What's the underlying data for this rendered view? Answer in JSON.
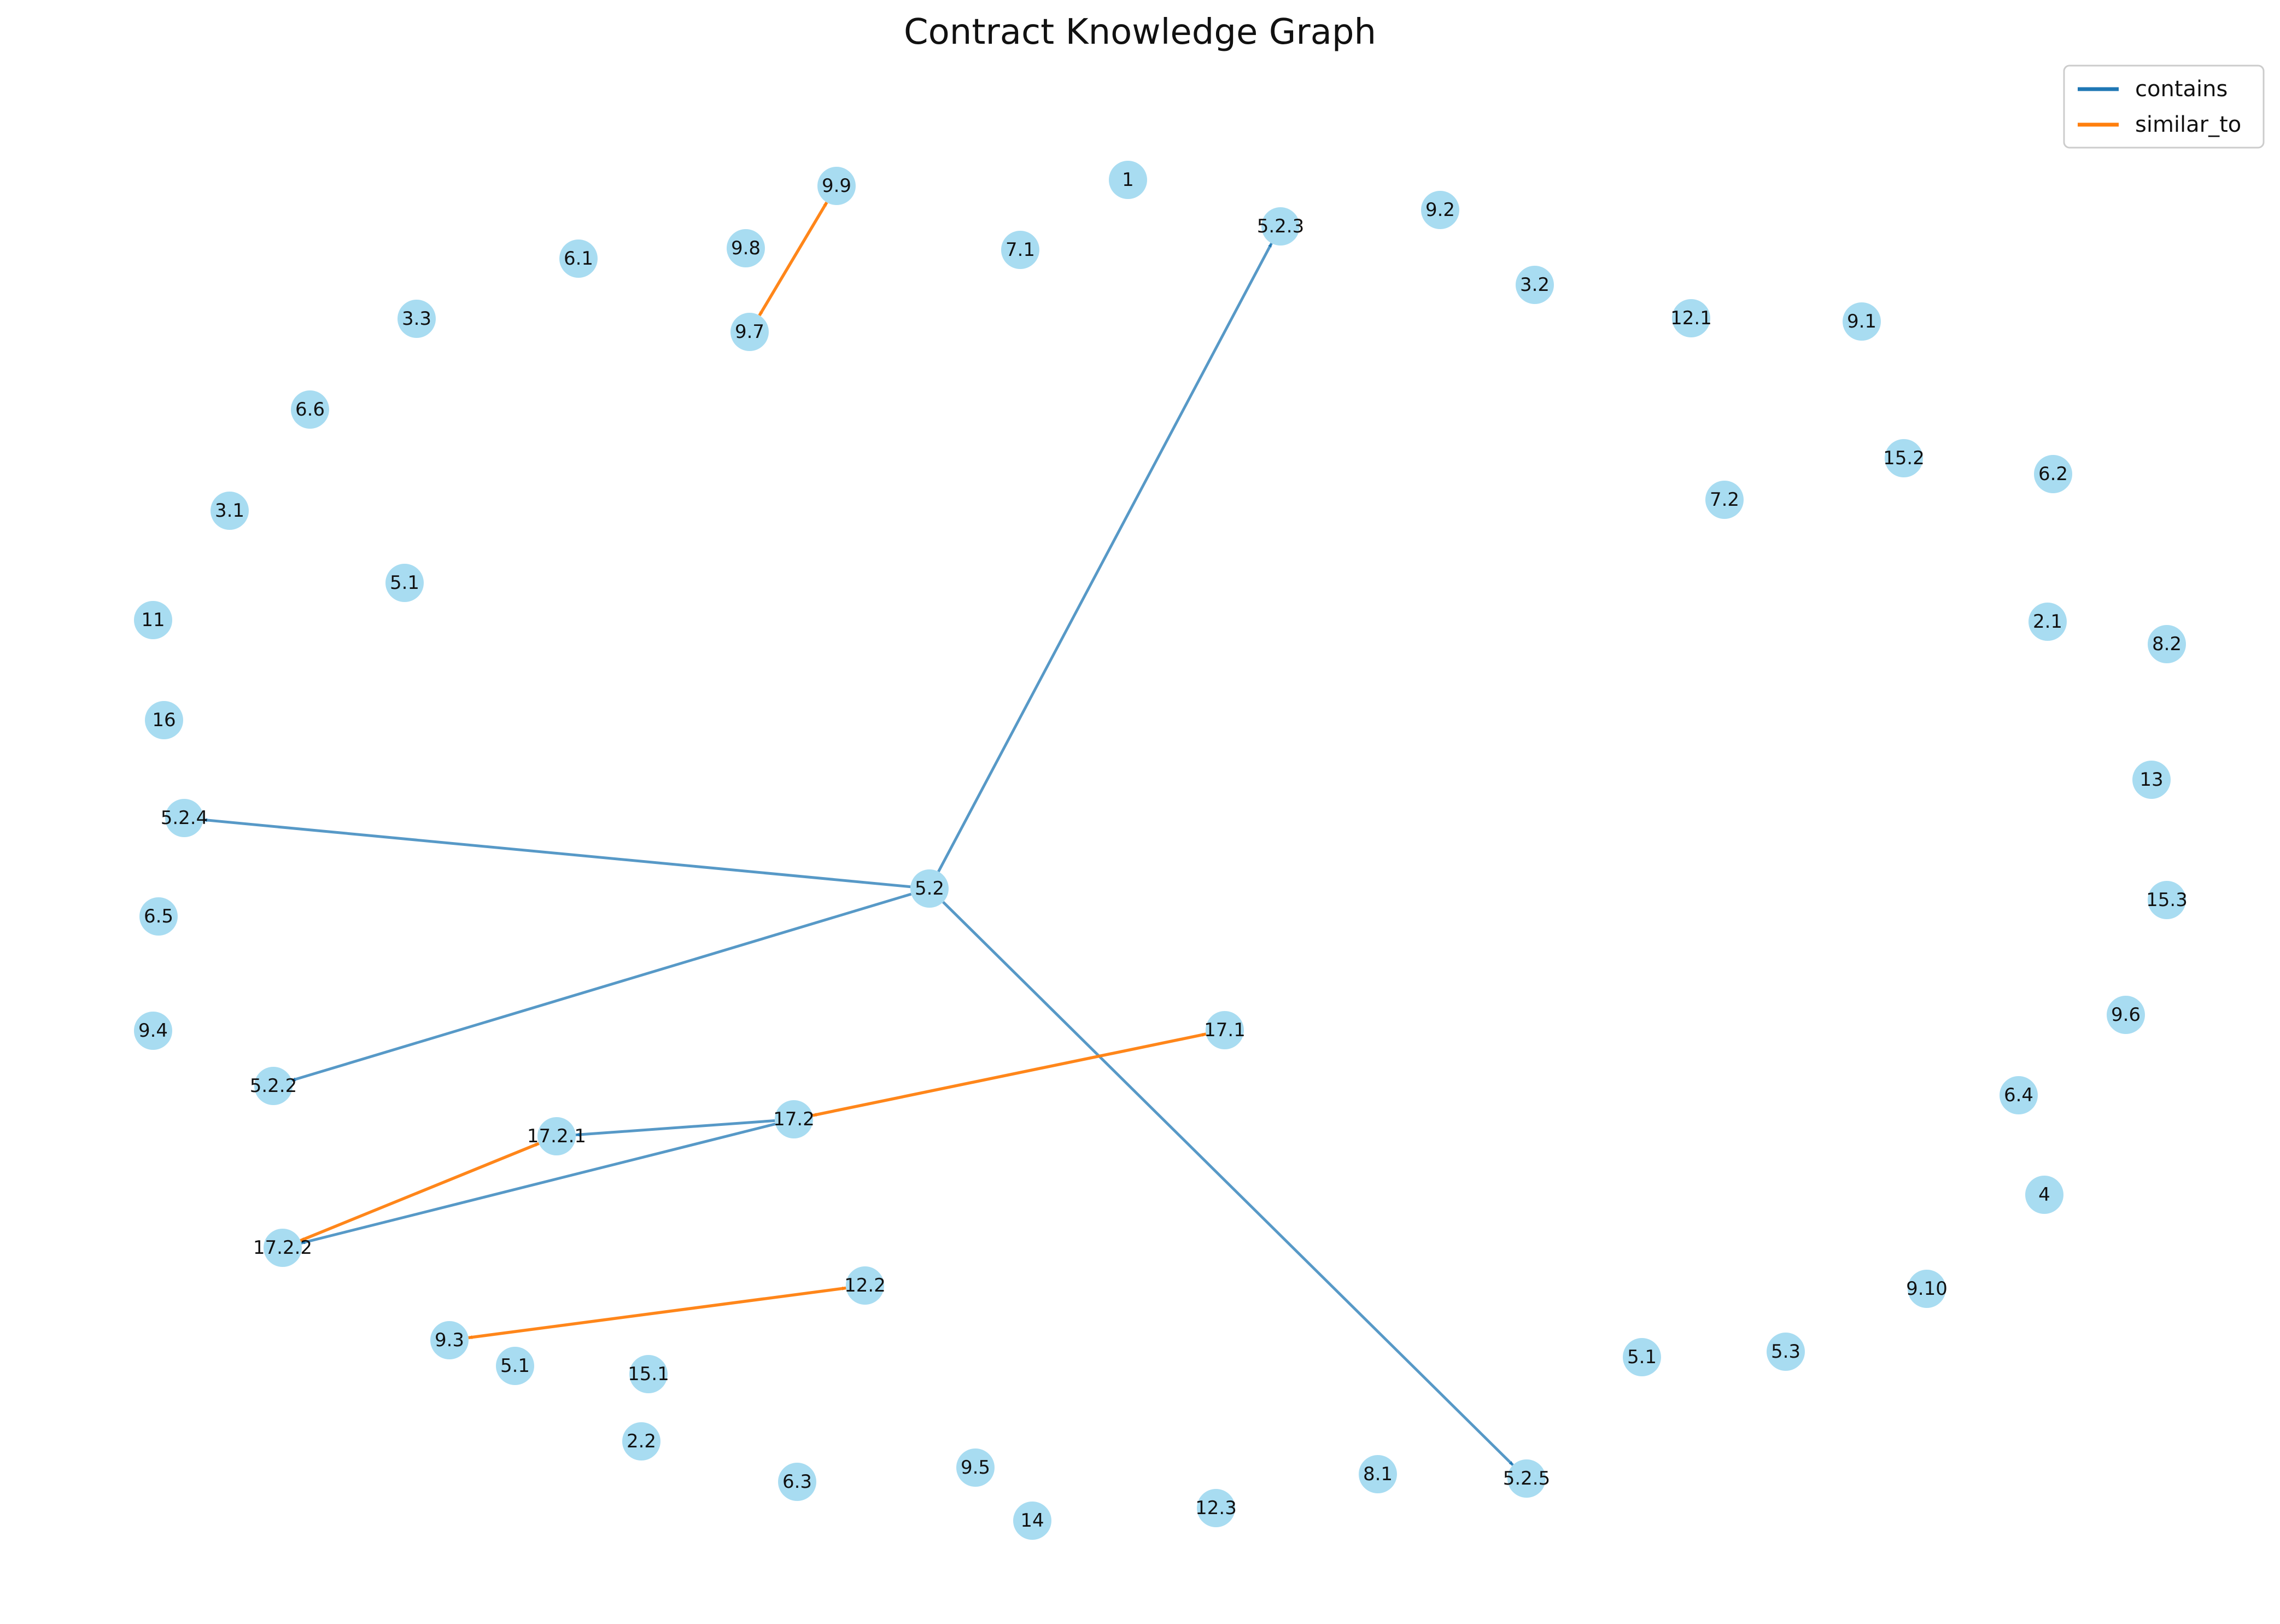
{
  "title": "Contract Knowledge Graph",
  "colors": {
    "node": "#87ceeb",
    "contains": "#1f77b4",
    "similar_to": "#ff7f0e",
    "label": "#111111"
  },
  "legend": [
    {
      "key": "contains",
      "label": "contains"
    },
    {
      "key": "similar_to",
      "label": "similar_to"
    }
  ],
  "nodes": [
    {
      "id": "n1",
      "label": "1"
    },
    {
      "id": "n5_2_3",
      "label": "5.2.3"
    },
    {
      "id": "n9_2",
      "label": "9.2"
    },
    {
      "id": "n9_9",
      "label": "9.9"
    },
    {
      "id": "n7_1",
      "label": "7.1"
    },
    {
      "id": "n9_8",
      "label": "9.8"
    },
    {
      "id": "n6_1",
      "label": "6.1"
    },
    {
      "id": "n9_7",
      "label": "9.7"
    },
    {
      "id": "n3_3",
      "label": "3.3"
    },
    {
      "id": "n3_2",
      "label": "3.2"
    },
    {
      "id": "n12_1",
      "label": "12.1"
    },
    {
      "id": "n9_1",
      "label": "9.1"
    },
    {
      "id": "n6_6",
      "label": "6.6"
    },
    {
      "id": "n15_2",
      "label": "15.2"
    },
    {
      "id": "n6_2",
      "label": "6.2"
    },
    {
      "id": "n7_2",
      "label": "7.2"
    },
    {
      "id": "n3_1",
      "label": "3.1"
    },
    {
      "id": "n5_1_a",
      "label": "5.1"
    },
    {
      "id": "n11",
      "label": "11"
    },
    {
      "id": "n2_1",
      "label": "2.1"
    },
    {
      "id": "n8_2",
      "label": "8.2"
    },
    {
      "id": "n16",
      "label": "16"
    },
    {
      "id": "n13",
      "label": "13"
    },
    {
      "id": "n5_2_4",
      "label": "5.2.4"
    },
    {
      "id": "n5_2",
      "label": "5.2"
    },
    {
      "id": "n15_3",
      "label": "15.3"
    },
    {
      "id": "n6_5",
      "label": "6.5"
    },
    {
      "id": "n9_6",
      "label": "9.6"
    },
    {
      "id": "n9_4",
      "label": "9.4"
    },
    {
      "id": "n17_1",
      "label": "17.1"
    },
    {
      "id": "n5_2_2",
      "label": "5.2.2"
    },
    {
      "id": "n6_4",
      "label": "6.4"
    },
    {
      "id": "n17_2",
      "label": "17.2"
    },
    {
      "id": "n17_2_1",
      "label": "17.2.1"
    },
    {
      "id": "n4",
      "label": "4"
    },
    {
      "id": "n17_2_2",
      "label": "17.2.2"
    },
    {
      "id": "n9_10",
      "label": "9.10"
    },
    {
      "id": "n12_2",
      "label": "12.2"
    },
    {
      "id": "n9_3",
      "label": "9.3"
    },
    {
      "id": "n5_1_b",
      "label": "5.1"
    },
    {
      "id": "n15_1",
      "label": "15.1"
    },
    {
      "id": "n5_1_c",
      "label": "5.1"
    },
    {
      "id": "n5_3",
      "label": "5.3"
    },
    {
      "id": "n2_2",
      "label": "2.2"
    },
    {
      "id": "n6_3",
      "label": "6.3"
    },
    {
      "id": "n9_5",
      "label": "9.5"
    },
    {
      "id": "n8_1",
      "label": "8.1"
    },
    {
      "id": "n5_2_5",
      "label": "5.2.5"
    },
    {
      "id": "n14",
      "label": "14"
    },
    {
      "id": "n12_3",
      "label": "12.3"
    }
  ],
  "edges": [
    {
      "source": "n5_2",
      "target": "n5_2_3",
      "type": "contains"
    },
    {
      "source": "n5_2",
      "target": "n5_2_4",
      "type": "contains"
    },
    {
      "source": "n5_2",
      "target": "n5_2_2",
      "type": "contains"
    },
    {
      "source": "n5_2",
      "target": "n5_2_5",
      "type": "contains"
    },
    {
      "source": "n17_2",
      "target": "n17_2_1",
      "type": "contains"
    },
    {
      "source": "n17_2",
      "target": "n17_2_2",
      "type": "contains"
    },
    {
      "source": "n9_7",
      "target": "n9_9",
      "type": "similar_to"
    },
    {
      "source": "n9_9",
      "target": "n9_7",
      "type": "similar_to"
    },
    {
      "source": "n17_2",
      "target": "n17_1",
      "type": "similar_to"
    },
    {
      "source": "n17_1",
      "target": "n17_2",
      "type": "similar_to"
    },
    {
      "source": "n17_2_2",
      "target": "n17_2_1",
      "type": "similar_to"
    },
    {
      "source": "n17_2_1",
      "target": "n17_2_2",
      "type": "similar_to"
    },
    {
      "source": "n9_3",
      "target": "n12_2",
      "type": "similar_to"
    },
    {
      "source": "n12_2",
      "target": "n9_3",
      "type": "similar_to"
    }
  ]
}
